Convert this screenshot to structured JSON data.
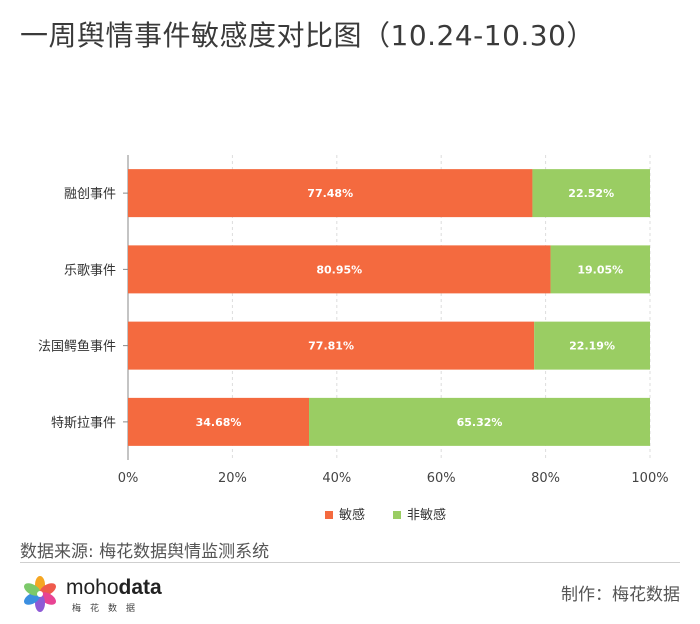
{
  "title": "一周舆情事件敏感度对比图（10.24-10.30）",
  "chart_data": {
    "type": "bar",
    "orientation": "horizontal",
    "stacked": true,
    "categories": [
      "融创事件",
      "乐歌事件",
      "法国鳄鱼事件",
      "特斯拉事件"
    ],
    "series": [
      {
        "name": "敏感",
        "color": "#f46a3f",
        "values": [
          77.48,
          80.95,
          77.81,
          34.68
        ],
        "labels": [
          "77.48%",
          "80.95%",
          "77.81%",
          "34.68%"
        ]
      },
      {
        "name": "非敏感",
        "color": "#9acd63",
        "values": [
          22.52,
          19.05,
          22.19,
          65.32
        ],
        "labels": [
          "22.52%",
          "19.05%",
          "22.19%",
          "65.32%"
        ]
      }
    ],
    "xlim": [
      0,
      100
    ],
    "x_ticks": [
      "0%",
      "20%",
      "40%",
      "60%",
      "80%",
      "100%"
    ],
    "grid": "vertical dashed",
    "legend": "bottom-center"
  },
  "source": "数据来源: 梅花数据舆情监测系统",
  "logo": {
    "word_light": "moho",
    "word_bold": "data",
    "sub": "梅花数据"
  },
  "credit": "制作：梅花数据"
}
